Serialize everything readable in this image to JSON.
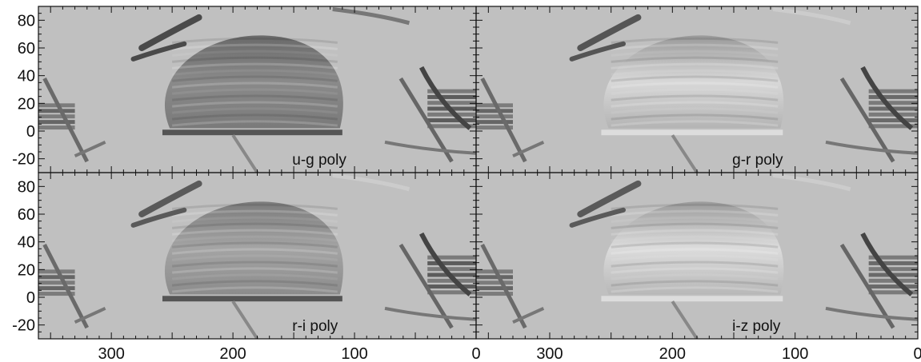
{
  "chart_data": {
    "type": "heatmap",
    "layout": "2x2 panels",
    "xlim": [
      360,
      0
    ],
    "ylim": [
      -30,
      90
    ],
    "xticks": [
      300,
      200,
      100,
      0
    ],
    "yticks": [
      -20,
      0,
      20,
      40,
      60,
      80
    ],
    "colormap": "grayscale",
    "background": "#c0c0c0",
    "panels": [
      {
        "name": "u-g poly",
        "label": "u-g poly"
      },
      {
        "name": "g-r poly",
        "label": "g-r poly"
      },
      {
        "name": "r-i poly",
        "label": "r-i poly"
      },
      {
        "name": "i-z poly",
        "label": "i-z poly"
      }
    ],
    "xtick_labels": [
      "300",
      "200",
      "100",
      "0"
    ],
    "ytick_labels": [
      "-20",
      "0",
      "20",
      "40",
      "60",
      "80"
    ]
  }
}
